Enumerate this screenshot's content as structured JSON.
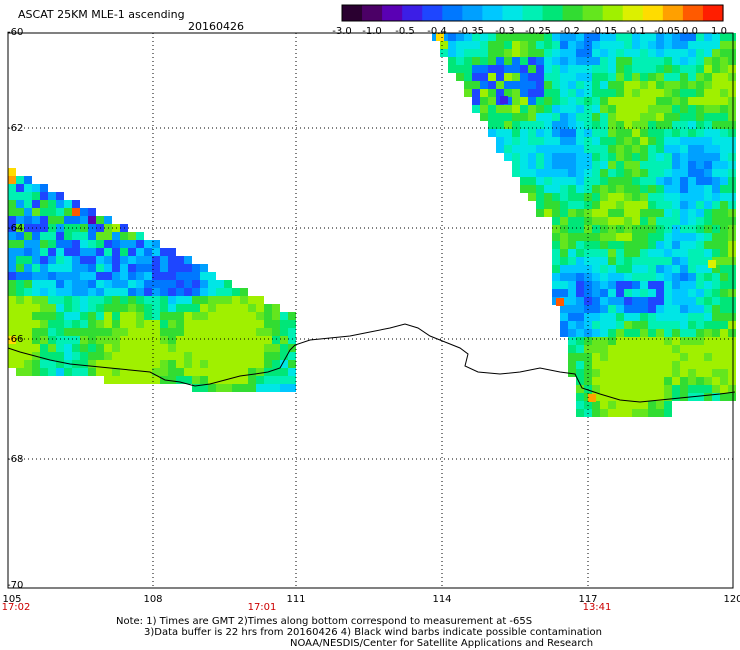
{
  "header": {
    "title": "ASCAT 25KM MLE-1 ascending",
    "date": "20160426"
  },
  "colorbar": {
    "colors": [
      "#2a0030",
      "#4b0066",
      "#5a00b4",
      "#3c1ee6",
      "#1e46ff",
      "#0078ff",
      "#00a0ff",
      "#00c8ff",
      "#00e6e6",
      "#00f0b4",
      "#00e678",
      "#32dc32",
      "#64e61e",
      "#a0f000",
      "#dcf000",
      "#ffdc00",
      "#ffa000",
      "#ff5a00",
      "#ff1e00"
    ],
    "labels": [
      "-3.0",
      "-1.0",
      "-0.5",
      "-0.4",
      "-0.35",
      "-0.3",
      "-0.25",
      "-0.2",
      "-0.15",
      "-0.1",
      "-0.05",
      "0.0",
      "1.0"
    ]
  },
  "axes": {
    "y_labels": [
      "-60",
      "-62",
      "-64",
      "-66",
      "-68",
      "-70"
    ],
    "x_labels": [
      "105",
      "108",
      "111",
      "114",
      "117",
      "120"
    ],
    "time_labels": [
      "17:02",
      "17:01",
      "13:41"
    ]
  },
  "notes": {
    "line1": "Note: 1) Times are GMT 2)Times along bottom correspond to measurement at -65S",
    "line2": "3)Data buffer is 22 hrs from 20160426 4) Black wind barbs indicate possible contamination",
    "line3": "NOAA/NESDIS/Center for Satellite Applications and Research"
  }
}
